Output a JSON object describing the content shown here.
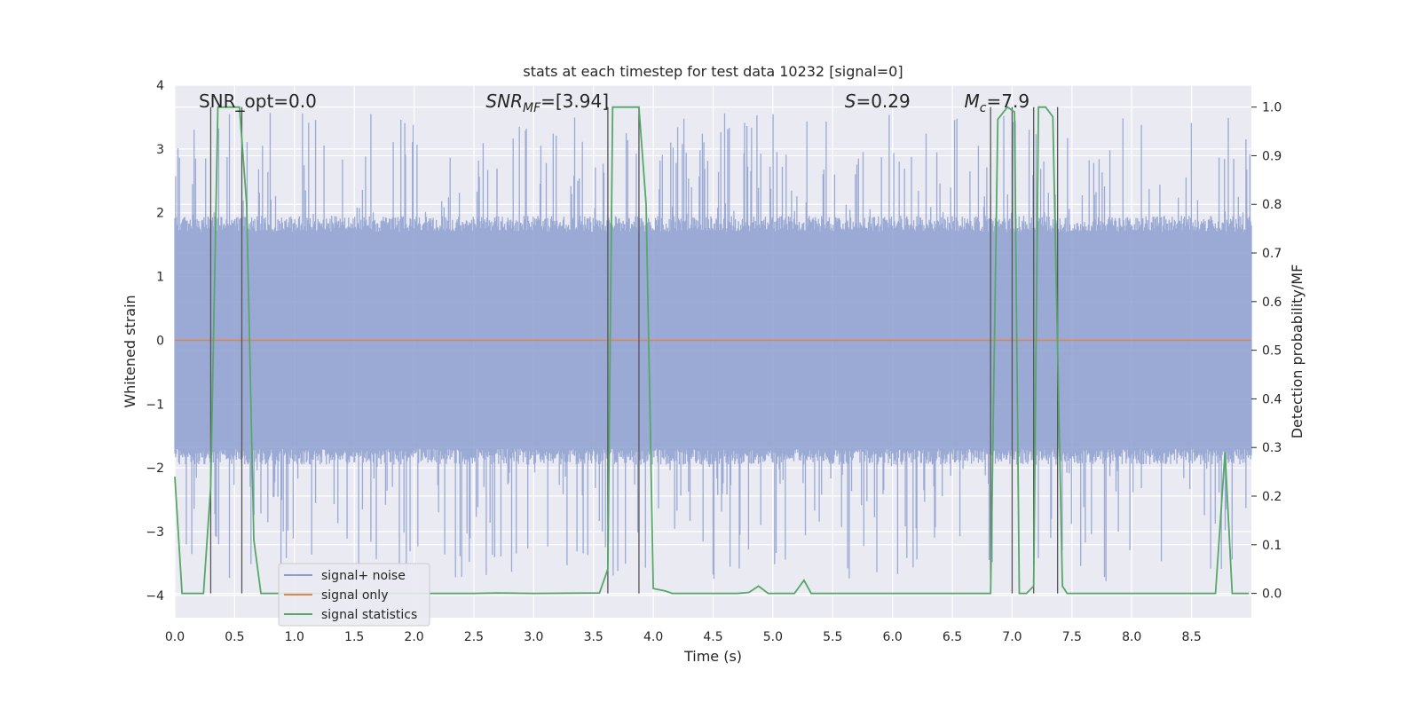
{
  "chart_data": {
    "type": "line",
    "title": "stats at each timestep for test data 10232 [signal=0]",
    "xlabel": "Time (s)",
    "ylabel": "Whitened strain",
    "y2label": "Detection probability/MF",
    "xlim": [
      0.0,
      9.0
    ],
    "ylim": [
      -4.35,
      4.0
    ],
    "y2lim": [
      -0.05,
      1.045
    ],
    "xticks": [
      "0.0",
      "0.5",
      "1.0",
      "1.5",
      "2.0",
      "2.5",
      "3.0",
      "3.5",
      "4.0",
      "4.5",
      "5.0",
      "5.5",
      "6.0",
      "6.5",
      "7.0",
      "7.5",
      "8.0",
      "8.5"
    ],
    "xtick_values": [
      0.0,
      0.5,
      1.0,
      1.5,
      2.0,
      2.5,
      3.0,
      3.5,
      4.0,
      4.5,
      5.0,
      5.5,
      6.0,
      6.5,
      7.0,
      7.5,
      8.0,
      8.5
    ],
    "yticks": [
      "−4",
      "−3",
      "−2",
      "−1",
      "0",
      "1",
      "2",
      "3",
      "4"
    ],
    "ytick_values": [
      -4,
      -3,
      -2,
      -1,
      0,
      1,
      2,
      3,
      4
    ],
    "y2ticks": [
      "0.0",
      "0.1",
      "0.2",
      "0.3",
      "0.4",
      "0.5",
      "0.6",
      "0.7",
      "0.8",
      "0.9",
      "1.0"
    ],
    "y2tick_values": [
      0.0,
      0.1,
      0.2,
      0.3,
      0.4,
      0.5,
      0.6,
      0.7,
      0.8,
      0.9,
      1.0
    ],
    "grid": true,
    "legend": {
      "placement": "lower-left",
      "entries": [
        {
          "label": "signal+ noise",
          "color": "#8c9fcf"
        },
        {
          "label": "signal only",
          "color": "#dd8452"
        },
        {
          "label": "signal statistics",
          "color": "#55a868"
        }
      ]
    },
    "annotations": [
      {
        "text": "SNR_opt=0.0",
        "x": 0.2
      },
      {
        "text": "SNR_MF=[3.94]",
        "x": 2.6,
        "math": true,
        "base": "SNR",
        "sub": "MF",
        "rest": "=[3.94]"
      },
      {
        "text": "S=0.29",
        "x": 5.6,
        "math": true,
        "base": "S",
        "sub": "",
        "rest": "=0.29"
      },
      {
        "text": "M_c=7.9",
        "x": 6.6,
        "math": true,
        "base": "M",
        "sub": "c",
        "rest": "=7.9"
      }
    ],
    "series": [
      {
        "name": "signal+ noise",
        "color": "#8c9fcf",
        "noise_band": {
          "core_low": -1.7,
          "core_high": 1.7,
          "peak_low": -3.8,
          "peak_high": 3.6,
          "samples": 1400
        }
      },
      {
        "name": "signal only",
        "color": "#dd8452",
        "x": [
          0.0,
          9.0
        ],
        "y": [
          0.0,
          0.0
        ]
      },
      {
        "name": "signal statistics",
        "color": "#55a868",
        "axis": "right",
        "x": [
          0.0,
          0.06,
          0.12,
          0.18,
          0.24,
          0.3,
          0.36,
          0.42,
          0.48,
          0.54,
          0.6,
          0.66,
          0.72,
          0.78,
          0.84,
          0.9,
          1.5,
          2.0,
          2.5,
          2.7,
          3.0,
          3.55,
          3.62,
          3.66,
          3.7,
          3.8,
          3.88,
          3.94,
          4.0,
          4.1,
          4.16,
          4.3,
          4.7,
          4.8,
          4.88,
          4.96,
          5.0,
          5.18,
          5.26,
          5.32,
          5.4,
          6.0,
          6.5,
          6.82,
          6.88,
          6.96,
          7.02,
          7.06,
          7.12,
          7.18,
          7.22,
          7.28,
          7.34,
          7.38,
          7.42,
          7.46,
          7.6,
          8.0,
          8.5,
          8.7,
          8.78,
          8.84,
          8.92,
          8.98
        ],
        "y": [
          0.24,
          0.0,
          0.0,
          0.0,
          0.0,
          0.22,
          1.0,
          1.0,
          1.0,
          1.0,
          0.8,
          0.11,
          0.0,
          0.0,
          0.0,
          0.0,
          0.0,
          0.0,
          0.0,
          0.001,
          0.0,
          0.001,
          0.05,
          1.0,
          1.0,
          1.0,
          1.0,
          0.8,
          0.01,
          0.005,
          0.0,
          0.0,
          0.0,
          0.002,
          0.015,
          0.0,
          0.0,
          0.0,
          0.027,
          0.0,
          0.0,
          0.0,
          0.0,
          0.0,
          0.975,
          1.0,
          0.99,
          0.0,
          0.0,
          0.015,
          1.0,
          1.0,
          0.98,
          0.5,
          0.015,
          0.0,
          0.0,
          0.0,
          0.0,
          0.0,
          0.29,
          0.0,
          0.0,
          0.0
        ]
      }
    ],
    "vertical_markers": [
      0.3,
      0.56,
      3.62,
      3.88,
      6.82,
      7.0,
      7.18,
      7.38
    ]
  }
}
